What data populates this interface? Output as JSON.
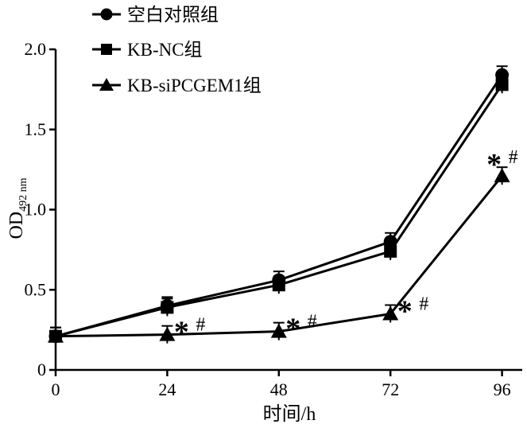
{
  "chart_data": {
    "type": "line",
    "xlabel": "时间/h",
    "ylabel_main": "OD",
    "ylabel_sub": "492 nm",
    "x": [
      0,
      24,
      48,
      72,
      96
    ],
    "xticks": [
      "0",
      "24",
      "48",
      "72",
      "96"
    ],
    "yticks": [
      "0",
      "0.5",
      "1.0",
      "1.5",
      "2.0"
    ],
    "xlim": [
      0,
      100
    ],
    "ylim": [
      0,
      2.0
    ],
    "grid": false,
    "legend_position": "top-left",
    "series": [
      {
        "name": "空白对照组",
        "marker": "circle",
        "values": [
          0.21,
          0.4,
          0.56,
          0.8,
          1.84
        ]
      },
      {
        "name": "KB-NC组",
        "marker": "square",
        "values": [
          0.21,
          0.39,
          0.53,
          0.74,
          1.78
        ]
      },
      {
        "name": "KB-siPCGEM1组",
        "marker": "triangle",
        "values": [
          0.21,
          0.22,
          0.24,
          0.35,
          1.21
        ]
      }
    ],
    "annotations": [
      {
        "x": 24,
        "y": 0.22,
        "star": "*",
        "hash": "#"
      },
      {
        "x": 48,
        "y": 0.24,
        "star": "*",
        "hash": "#"
      },
      {
        "x": 72,
        "y": 0.35,
        "star": "*",
        "hash": "#"
      },
      {
        "x": 96,
        "y": 1.21,
        "star": "*",
        "hash": "#"
      }
    ]
  }
}
